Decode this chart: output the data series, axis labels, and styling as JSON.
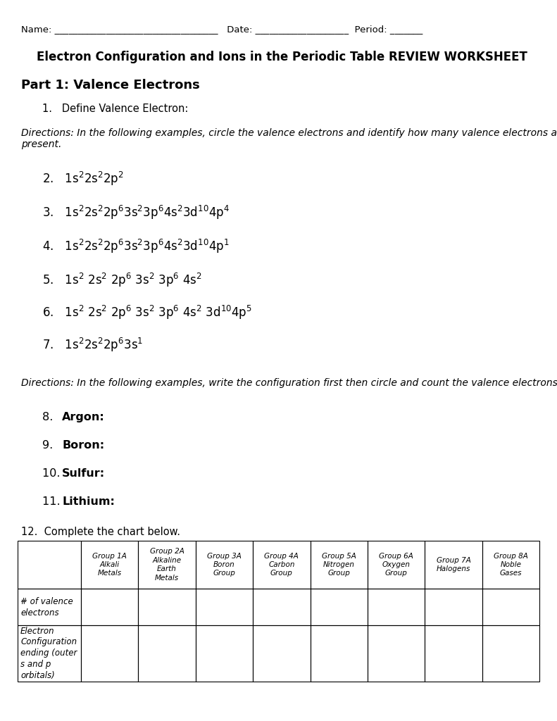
{
  "bg_color": "#ffffff",
  "title": "Electron Configuration and Ions in the Periodic Table REVIEW WORKSHEET",
  "part1": "Part 1: Valence Electrons",
  "q1_label": "1.   Define Valence Electron:",
  "directions1": "Directions: In the following examples, circle the valence electrons and identify how many valence electrons are present.",
  "directions2": "Directions: In the following examples, write the configuration first then circle and count the valence electrons.",
  "items2": [
    {
      "num": "8.",
      "label": "Argon:"
    },
    {
      "num": "9.",
      "label": "Boron:"
    },
    {
      "num": "10.",
      "label": "Sulfur:"
    },
    {
      "num": "11.",
      "label": "Lithium:"
    }
  ],
  "q12": "12.  Complete the chart below.",
  "table_headers": [
    "",
    "Group 1A\nAlkali\nMetals",
    "Group 2A\nAlkaline\nEarth\nMetals",
    "Group 3A\nBoron\nGroup",
    "Group 4A\nCarbon\nGroup",
    "Group 5A\nNitrogen\nGroup",
    "Group 6A\nOxygen\nGroup",
    "Group 7A\nHalogens",
    "Group 8A\nNoble\nGases"
  ],
  "table_row1": "# of valence\nelectrons",
  "table_row2": "Electron\nConfiguration\nending (outer\ns and p\norbitals)"
}
